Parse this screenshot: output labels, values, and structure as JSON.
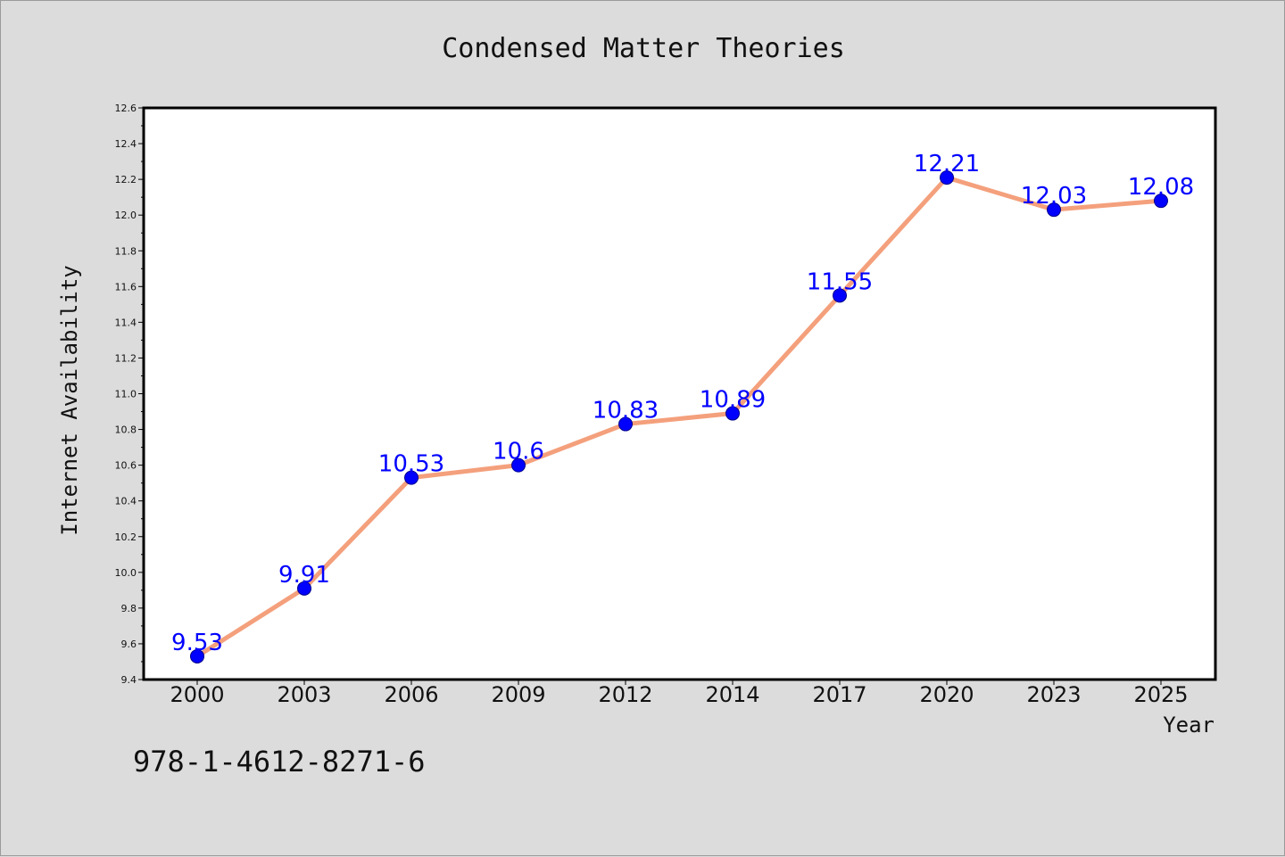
{
  "chart_data": {
    "type": "line",
    "title": "Condensed Matter Theories",
    "xlabel": "Year",
    "ylabel": "Internet Availability",
    "categories": [
      "2000",
      "2003",
      "2006",
      "2009",
      "2012",
      "2014",
      "2017",
      "2020",
      "2023",
      "2025"
    ],
    "series": [
      {
        "values": [
          9.53,
          9.91,
          10.53,
          10.6,
          10.83,
          10.89,
          11.55,
          12.21,
          12.03,
          12.08
        ],
        "data_labels": [
          "9.53",
          "9.91",
          "10.53",
          "10.6",
          "10.83",
          "10.89",
          "11.55",
          "12.21",
          "12.03",
          "12.08"
        ],
        "line_color": "#f4a07c",
        "marker_color": "#0000ff"
      }
    ],
    "ylim": [
      9.4,
      12.6
    ],
    "yticks": [
      "9.4",
      "9.6",
      "9.8",
      "10.0",
      "10.2",
      "10.4",
      "10.6",
      "10.8",
      "11.0",
      "11.2",
      "11.4",
      "11.6",
      "11.8",
      "12.0",
      "12.2",
      "12.4",
      "12.6"
    ],
    "grid": false,
    "legend": "none"
  },
  "footnote": "978-1-4612-8271-6",
  "colors": {
    "background": "#dcdcdc",
    "plot_background": "#ffffff",
    "axis": "#000000",
    "line": "#f4a07c",
    "marker": "#0000ff",
    "data_label": "#0000ff"
  }
}
